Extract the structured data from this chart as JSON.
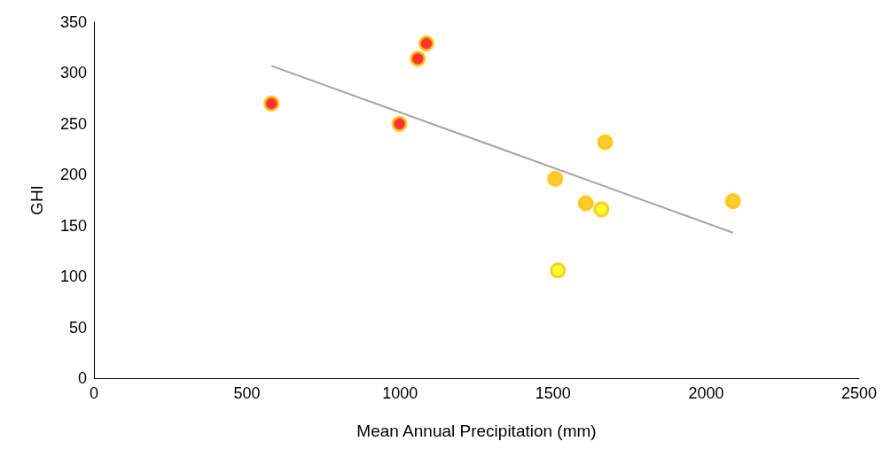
{
  "chart_data": {
    "type": "scatter",
    "xlabel": "Mean Annual Precipitation (mm)",
    "ylabel": "GHI",
    "xlim": [
      0,
      2500
    ],
    "xticks": [
      0,
      500,
      1000,
      1500,
      2000,
      2500
    ],
    "ylim": [
      0,
      350
    ],
    "yticks": [
      0,
      50,
      100,
      150,
      200,
      250,
      300,
      350
    ],
    "grid": false,
    "series": [
      {
        "marker": "circle",
        "color": "#ff0000",
        "x": [
          580,
          998,
          1058,
          1086
        ],
        "values": [
          270,
          250,
          314,
          329
        ]
      },
      {
        "marker": "circle",
        "color": "#ffc000",
        "x": [
          1507,
          1670,
          1607,
          2088
        ],
        "values": [
          196,
          232,
          172,
          174
        ]
      },
      {
        "marker": "circle",
        "color": "#ffff00",
        "x": [
          1658,
          1516
        ],
        "values": [
          166,
          106
        ]
      },
      {
        "type": "line",
        "marker": "none",
        "color": "#a5a5a5",
        "x": [
          580,
          2088
        ],
        "values": [
          307,
          143
        ]
      }
    ]
  }
}
